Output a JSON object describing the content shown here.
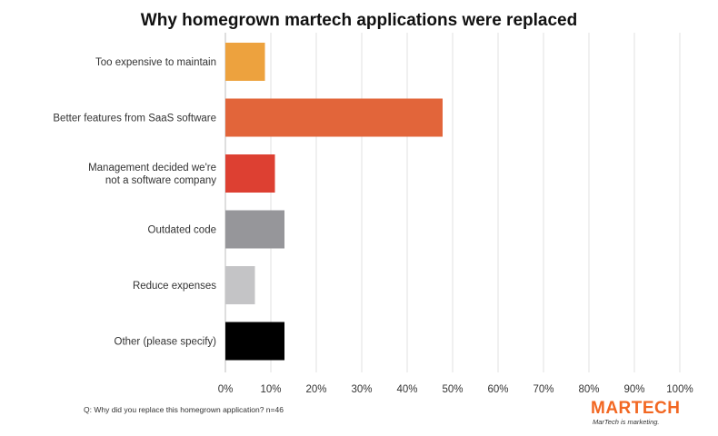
{
  "chart_data": {
    "type": "bar",
    "orientation": "horizontal",
    "title": "Why homegrown martech applications were replaced",
    "categories": [
      "Too expensive to maintain",
      "Better features from SaaS software",
      "Management decided we're not a software company",
      "Outdated code",
      "Reduce expenses",
      "Other (please specify)"
    ],
    "category_lines": [
      [
        "Too expensive to maintain"
      ],
      [
        "Better features from SaaS software"
      ],
      [
        "Management decided we're",
        "not a software company"
      ],
      [
        "Outdated code"
      ],
      [
        "Reduce expenses"
      ],
      [
        "Other (please specify)"
      ]
    ],
    "values": [
      8.7,
      47.8,
      10.9,
      13.0,
      6.5,
      13.0
    ],
    "colors": [
      "#eda23e",
      "#e2653a",
      "#dd4032",
      "#96969a",
      "#c4c4c6",
      "#000000"
    ],
    "xlim": [
      0,
      100
    ],
    "xticks": [
      0,
      10,
      20,
      30,
      40,
      50,
      60,
      70,
      80,
      90,
      100
    ],
    "xtick_suffix": "%",
    "grid": "vertical",
    "legend": "none"
  },
  "footnote": "Q: Why did you replace this homegrown application? n=46",
  "logo": {
    "text_a": "MAR",
    "text_b": "TECH",
    "tagline": "MarTech is marketing."
  }
}
